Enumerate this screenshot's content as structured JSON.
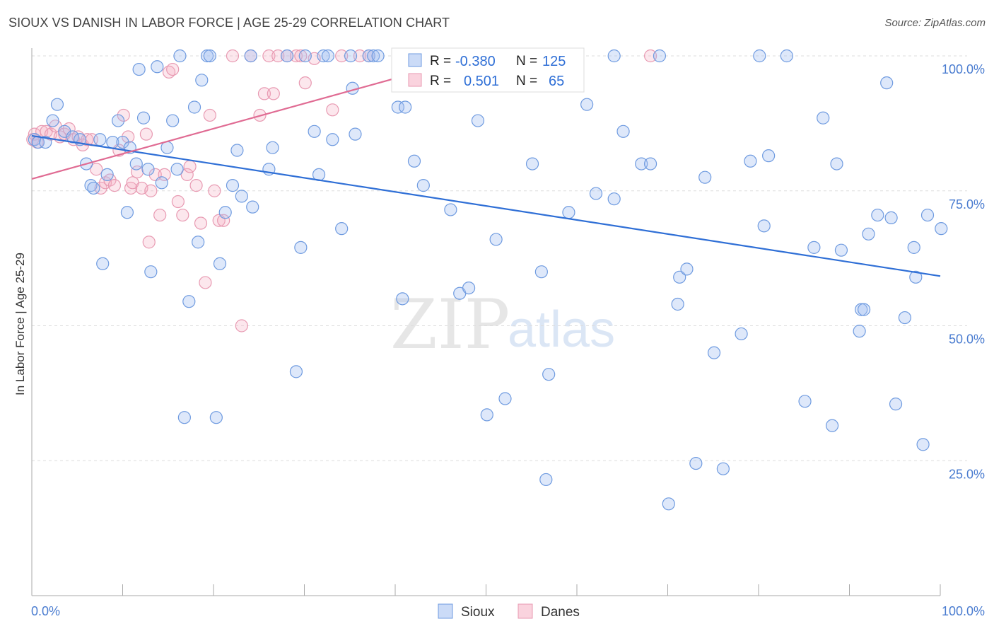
{
  "title": "SIOUX VS DANISH IN LABOR FORCE | AGE 25-29 CORRELATION CHART",
  "source": "Source: ZipAtlas.com",
  "watermark": {
    "zip": "ZIP",
    "atlas": "atlas"
  },
  "colors": {
    "sioux": "#6f9be0",
    "danes": "#e89ab2",
    "sioux_trend": "#2f6fd6",
    "danes_trend": "#e06b93",
    "tick_text": "#4a7cd0"
  },
  "stats": {
    "r_label": "R =",
    "n_label": "N =",
    "sioux": {
      "r": "-0.380",
      "n": "125"
    },
    "danes": {
      "r": "0.501",
      "n": "65"
    }
  },
  "legend": {
    "sioux": "Sioux",
    "danes": "Danes"
  },
  "chart_data": {
    "type": "scatter",
    "title": "SIOUX VS DANISH IN LABOR FORCE | AGE 25-29 CORRELATION CHART",
    "xlabel": "",
    "ylabel": "In Labor Force | Age 25-29",
    "xlim": [
      0,
      100
    ],
    "ylim": [
      0,
      102
    ],
    "x_ticks": [
      0,
      10,
      20,
      30,
      40,
      50,
      60,
      70,
      80,
      90,
      100
    ],
    "x_tick_labels": [
      {
        "x": 0,
        "label": "0.0%"
      },
      {
        "x": 100,
        "label": "100.0%"
      }
    ],
    "y_ticks": [
      25,
      50,
      75,
      100
    ],
    "y_tick_labels": [
      "25.0%",
      "50.0%",
      "75.0%",
      "100.0%"
    ],
    "grid": true,
    "legend_position": "bottom-center",
    "series": [
      {
        "name": "Sioux",
        "r": -0.38,
        "n": 125,
        "trend": [
          [
            0,
            85.2
          ],
          [
            100,
            59.2
          ]
        ],
        "points": [
          [
            0.3,
            84.5
          ],
          [
            0.7,
            84
          ],
          [
            1.5,
            84
          ],
          [
            2.3,
            88
          ],
          [
            2.8,
            91
          ],
          [
            3.6,
            86
          ],
          [
            4.5,
            85
          ],
          [
            5.3,
            84.5
          ],
          [
            6,
            80
          ],
          [
            6.5,
            76
          ],
          [
            6.8,
            75.5
          ],
          [
            7.5,
            84.5
          ],
          [
            7.8,
            61.5
          ],
          [
            8.3,
            78
          ],
          [
            8.9,
            84
          ],
          [
            9.5,
            88
          ],
          [
            10,
            84
          ],
          [
            10.5,
            71
          ],
          [
            10.8,
            83
          ],
          [
            11.5,
            80
          ],
          [
            11.8,
            97.5
          ],
          [
            12.3,
            88.5
          ],
          [
            12.8,
            79
          ],
          [
            13.1,
            60
          ],
          [
            13.8,
            98
          ],
          [
            14.3,
            76.5
          ],
          [
            14.9,
            83
          ],
          [
            15.5,
            88
          ],
          [
            16,
            79
          ],
          [
            16.3,
            100
          ],
          [
            16.8,
            33
          ],
          [
            17.3,
            54.5
          ],
          [
            17.9,
            90.5
          ],
          [
            18.3,
            65.5
          ],
          [
            18.7,
            95.5
          ],
          [
            19.3,
            100
          ],
          [
            19.6,
            100
          ],
          [
            20.3,
            33
          ],
          [
            20.7,
            61.5
          ],
          [
            21.3,
            71
          ],
          [
            22.1,
            76
          ],
          [
            22.6,
            82.5
          ],
          [
            23.1,
            74
          ],
          [
            24.1,
            100
          ],
          [
            24.3,
            72
          ],
          [
            26.1,
            79
          ],
          [
            26.5,
            83
          ],
          [
            28.1,
            100
          ],
          [
            29.1,
            41.5
          ],
          [
            29.6,
            64.5
          ],
          [
            30.1,
            100
          ],
          [
            31.1,
            86
          ],
          [
            31.6,
            78
          ],
          [
            32.1,
            100
          ],
          [
            32.6,
            100
          ],
          [
            33.1,
            84.5
          ],
          [
            34.1,
            68
          ],
          [
            35.1,
            100
          ],
          [
            35.3,
            94
          ],
          [
            35.6,
            85.5
          ],
          [
            37.1,
            100
          ],
          [
            37.6,
            100
          ],
          [
            38.1,
            100
          ],
          [
            40.3,
            90.5
          ],
          [
            40.8,
            55
          ],
          [
            41.1,
            90.5
          ],
          [
            42.1,
            80.5
          ],
          [
            43.1,
            76
          ],
          [
            46.1,
            71.5
          ],
          [
            47.1,
            56
          ],
          [
            48.1,
            57
          ],
          [
            49.1,
            88
          ],
          [
            50.1,
            33.5
          ],
          [
            51.1,
            66
          ],
          [
            52.1,
            36.5
          ],
          [
            54.1,
            100
          ],
          [
            55.1,
            80
          ],
          [
            56.1,
            60
          ],
          [
            56.6,
            21.5
          ],
          [
            56.9,
            41
          ],
          [
            57.1,
            100
          ],
          [
            59.1,
            71
          ],
          [
            60.1,
            100
          ],
          [
            61.1,
            91
          ],
          [
            62.1,
            74.5
          ],
          [
            64.1,
            100
          ],
          [
            64.1,
            73.5
          ],
          [
            65.1,
            86
          ],
          [
            67.1,
            80
          ],
          [
            68.1,
            80
          ],
          [
            69.1,
            100
          ],
          [
            70.1,
            17
          ],
          [
            71.1,
            54
          ],
          [
            71.3,
            59
          ],
          [
            72.1,
            60.5
          ],
          [
            73.1,
            24.5
          ],
          [
            74.1,
            77.5
          ],
          [
            75.1,
            45
          ],
          [
            76.1,
            23.5
          ],
          [
            78.1,
            48.5
          ],
          [
            79.1,
            80.5
          ],
          [
            80.1,
            100
          ],
          [
            80.6,
            68.5
          ],
          [
            81.1,
            81.5
          ],
          [
            83.1,
            100
          ],
          [
            85.1,
            36
          ],
          [
            86.1,
            64.5
          ],
          [
            87.1,
            88.5
          ],
          [
            88.1,
            31.5
          ],
          [
            88.6,
            80
          ],
          [
            89.1,
            64
          ],
          [
            91.1,
            49
          ],
          [
            91.3,
            53
          ],
          [
            91.6,
            53
          ],
          [
            92.1,
            67
          ],
          [
            93.1,
            70.5
          ],
          [
            94.1,
            95
          ],
          [
            94.6,
            70
          ],
          [
            95.1,
            35.5
          ],
          [
            96.1,
            51.5
          ],
          [
            97.1,
            64.5
          ],
          [
            97.3,
            59
          ],
          [
            98.1,
            28
          ],
          [
            98.6,
            70.5
          ],
          [
            100.1,
            68
          ]
        ]
      },
      {
        "name": "Danes",
        "r": 0.501,
        "n": 65,
        "trend": [
          [
            0,
            77.2
          ],
          [
            50,
            100.5
          ]
        ],
        "points": [
          [
            0.1,
            84.5
          ],
          [
            0.3,
            85.5
          ],
          [
            0.6,
            84
          ],
          [
            1.1,
            86
          ],
          [
            1.6,
            86
          ],
          [
            2.1,
            85.5
          ],
          [
            2.6,
            87
          ],
          [
            3.1,
            85
          ],
          [
            3.6,
            85.5
          ],
          [
            4.1,
            86.5
          ],
          [
            4.6,
            84.5
          ],
          [
            5.1,
            85
          ],
          [
            5.6,
            83.5
          ],
          [
            6.1,
            84.5
          ],
          [
            6.6,
            84.5
          ],
          [
            7.1,
            79
          ],
          [
            7.6,
            75.5
          ],
          [
            8.1,
            76.5
          ],
          [
            8.6,
            77
          ],
          [
            9.1,
            76
          ],
          [
            9.6,
            82.5
          ],
          [
            10.1,
            89
          ],
          [
            10.6,
            85
          ],
          [
            10.9,
            75.5
          ],
          [
            11.1,
            76.5
          ],
          [
            11.6,
            78.5
          ],
          [
            12.1,
            75.5
          ],
          [
            12.6,
            85.5
          ],
          [
            12.9,
            65.5
          ],
          [
            13.1,
            75
          ],
          [
            13.6,
            78
          ],
          [
            14.1,
            70.5
          ],
          [
            14.6,
            78
          ],
          [
            15.1,
            97
          ],
          [
            15.5,
            97.5
          ],
          [
            16.1,
            73
          ],
          [
            16.6,
            70.5
          ],
          [
            17.1,
            78
          ],
          [
            17.4,
            79.5
          ],
          [
            18.1,
            76
          ],
          [
            18.6,
            69
          ],
          [
            19.1,
            58
          ],
          [
            19.6,
            89
          ],
          [
            20.1,
            75
          ],
          [
            20.6,
            69.5
          ],
          [
            21.1,
            69.5
          ],
          [
            22.1,
            100
          ],
          [
            23.1,
            50
          ],
          [
            24.1,
            100
          ],
          [
            25.1,
            89
          ],
          [
            25.6,
            93
          ],
          [
            26.1,
            100
          ],
          [
            26.6,
            93
          ],
          [
            27.1,
            100
          ],
          [
            28.1,
            100
          ],
          [
            29.1,
            100
          ],
          [
            29.6,
            100
          ],
          [
            30.1,
            95
          ],
          [
            31.1,
            99.5
          ],
          [
            33.1,
            90
          ],
          [
            34.1,
            100
          ],
          [
            36.1,
            100
          ],
          [
            37.1,
            100
          ],
          [
            48.1,
            100
          ],
          [
            68.1,
            100
          ]
        ]
      }
    ]
  }
}
